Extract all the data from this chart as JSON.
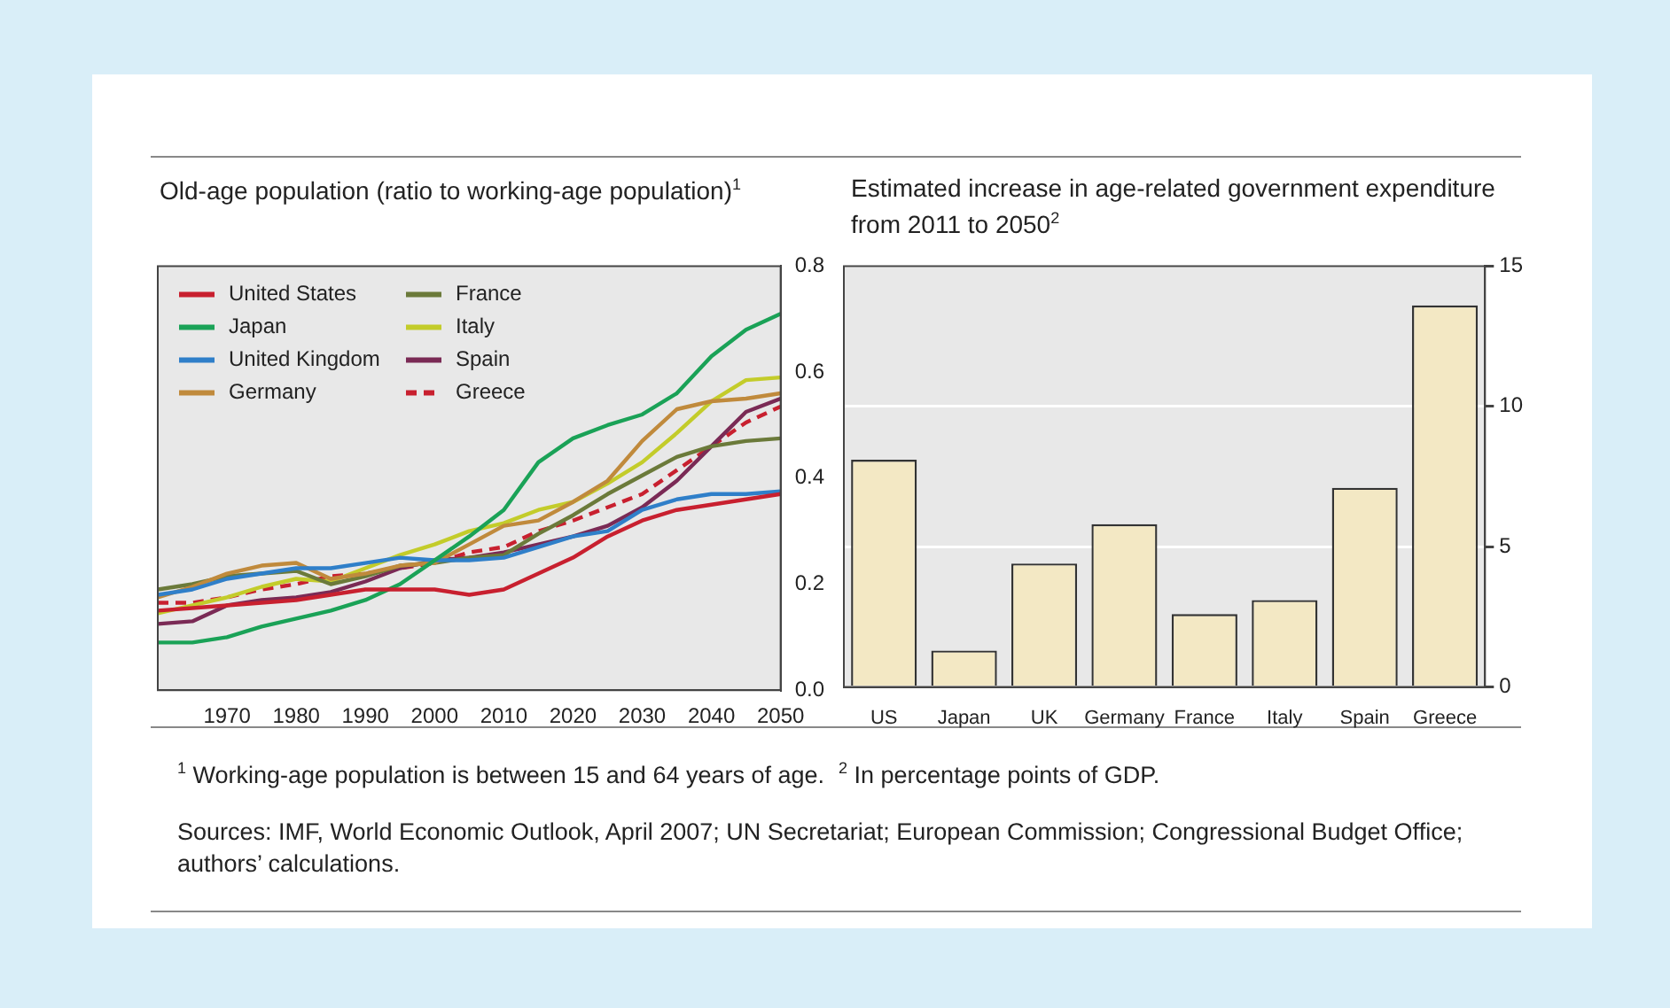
{
  "chart_data": [
    {
      "type": "line",
      "title": "Old-age population (ratio to working-age population)$^{1}$",
      "xlim": [
        1960,
        2050
      ],
      "xticks": [
        1970,
        1980,
        1990,
        2000,
        2010,
        2020,
        2030,
        2040,
        2050
      ],
      "ylim": [
        0,
        0.8
      ],
      "yticks": [
        {
          "value": 0,
          "label": "0.0"
        },
        0.2,
        0.4,
        0.6,
        0.8
      ],
      "grid": false,
      "legend": "top left",
      "marker": "none",
      "x": [
        1960,
        1965,
        1970,
        1975,
        1980,
        1985,
        1990,
        1995,
        2000,
        2005,
        2010,
        2015,
        2020,
        2025,
        2030,
        2035,
        2040,
        2045,
        2050
      ],
      "series": [
        {
          "name": "United States",
          "color": "#c8202f",
          "values": [
            0.15,
            0.155,
            0.16,
            0.165,
            0.17,
            0.18,
            0.19,
            0.19,
            0.19,
            0.18,
            0.19,
            0.22,
            0.25,
            0.29,
            0.32,
            0.34,
            0.35,
            0.36,
            0.37
          ]
        },
        {
          "name": "Japan",
          "color": "#1aa257",
          "values": [
            0.09,
            0.09,
            0.1,
            0.12,
            0.135,
            0.15,
            0.17,
            0.2,
            0.245,
            0.29,
            0.34,
            0.43,
            0.475,
            0.5,
            0.52,
            0.56,
            0.63,
            0.68,
            0.71
          ]
        },
        {
          "name": "United Kingdom",
          "color": "#2f7fc9",
          "values": [
            0.18,
            0.19,
            0.21,
            0.22,
            0.23,
            0.23,
            0.24,
            0.25,
            0.245,
            0.245,
            0.25,
            0.27,
            0.29,
            0.3,
            0.34,
            0.36,
            0.37,
            0.37,
            0.375
          ]
        },
        {
          "name": "Germany",
          "color": "#c08a3c",
          "values": [
            0.175,
            0.195,
            0.22,
            0.235,
            0.24,
            0.21,
            0.22,
            0.235,
            0.24,
            0.275,
            0.31,
            0.32,
            0.355,
            0.395,
            0.47,
            0.53,
            0.545,
            0.55,
            0.56
          ]
        },
        {
          "name": "France",
          "color": "#6b7a3a",
          "values": [
            0.19,
            0.2,
            0.215,
            0.22,
            0.225,
            0.2,
            0.215,
            0.235,
            0.24,
            0.25,
            0.255,
            0.295,
            0.33,
            0.37,
            0.405,
            0.44,
            0.46,
            0.47,
            0.475
          ]
        },
        {
          "name": "Italy",
          "color": "#c3cc2a",
          "values": [
            0.145,
            0.16,
            0.175,
            0.195,
            0.21,
            0.205,
            0.23,
            0.255,
            0.275,
            0.3,
            0.315,
            0.34,
            0.355,
            0.39,
            0.43,
            0.485,
            0.545,
            0.585,
            0.59
          ]
        },
        {
          "name": "Spain",
          "color": "#7a2a55",
          "values": [
            0.125,
            0.13,
            0.16,
            0.17,
            0.175,
            0.185,
            0.205,
            0.23,
            0.245,
            0.25,
            0.26,
            0.275,
            0.29,
            0.31,
            0.345,
            0.395,
            0.46,
            0.525,
            0.55
          ]
        },
        {
          "name": "Greece",
          "color": "#c8202f",
          "line_style": "dashed",
          "values": [
            0.165,
            0.165,
            0.175,
            0.19,
            0.2,
            0.215,
            0.22,
            0.23,
            0.24,
            0.26,
            0.27,
            0.3,
            0.32,
            0.345,
            0.37,
            0.415,
            0.46,
            0.505,
            0.535
          ]
        }
      ],
      "annotations": [
        "$^{1}$ Working-age population is between 15 and 64 years of age.",
        "$^{2}$ In percentage points of GDP.",
        "Sources: IMF, World Economic Outlook, April 2007; UN Secretariat; European Commission; Congressional Budget Office; authors’ calculations."
      ]
    },
    {
      "type": "bar",
      "title": "Estimated increase in age-related government expenditure from 2011 to 2050$^{2}$",
      "categories": [
        "US",
        "Japan",
        "UK",
        "Germany",
        "France",
        "Italy",
        "Spain",
        "Greece"
      ],
      "values": [
        8.1,
        1.3,
        4.4,
        5.8,
        2.6,
        3.1,
        7.1,
        13.6
      ],
      "color": "#f3e8c4",
      "ylim": [
        0,
        15
      ],
      "yticks": [
        0,
        5,
        10,
        15
      ],
      "grid": "y"
    }
  ]
}
